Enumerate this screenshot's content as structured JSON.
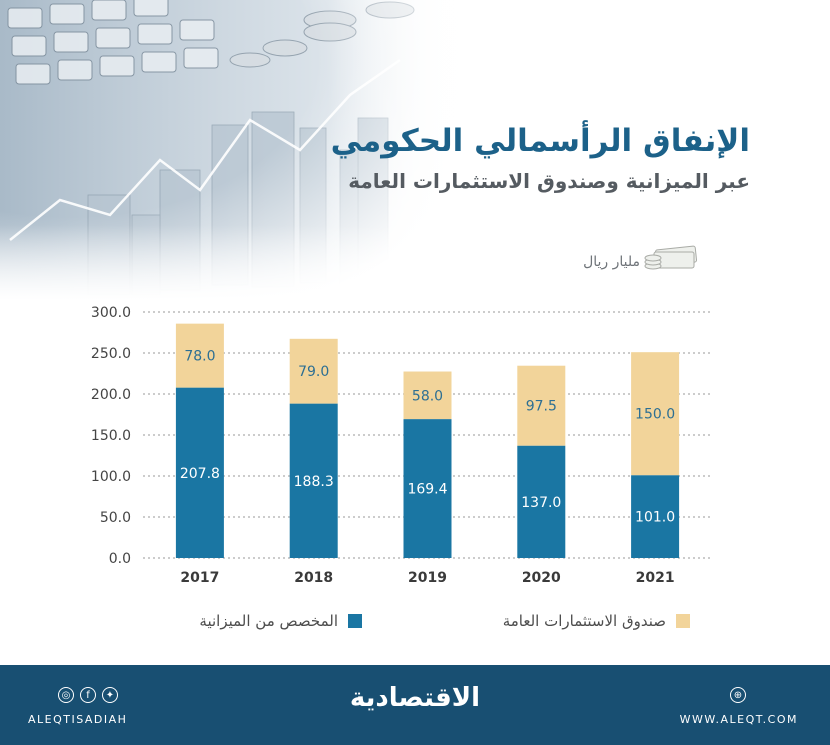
{
  "title": "الإنفاق الرأسمالي الحكومي",
  "subtitle": "عبر الميزانية وصندوق الاستثمارات العامة",
  "unit_label": "مليار ريال",
  "colors": {
    "budget": "#1a76a3",
    "fund": "#f2d49a",
    "title": "#1c6189",
    "footer": "#184f72"
  },
  "chart_data": {
    "type": "bar",
    "stacked": true,
    "categories": [
      "2017",
      "2018",
      "2019",
      "2020",
      "2021"
    ],
    "series": [
      {
        "name": "المخصص من الميزانية",
        "values": [
          207.8,
          188.3,
          169.4,
          137.0,
          101.0
        ]
      },
      {
        "name": "صندوق الاستثمارات العامة",
        "values": [
          78.0,
          79.0,
          58.0,
          97.5,
          150.0
        ]
      }
    ],
    "yticks": [
      "0.0",
      "50.0",
      "100.0",
      "150.0",
      "200.0",
      "250.0",
      "300.0"
    ],
    "ylim": [
      0,
      300
    ],
    "grid": true,
    "legend_position": "bottom"
  },
  "footer": {
    "brand": "الاقتصادية",
    "handle": "ALEQTISADIAH",
    "url": "WWW.ALEQT.COM",
    "social_icons": [
      "instagram-icon",
      "facebook-icon",
      "twitter-icon"
    ],
    "web_icon": "globe-icon"
  }
}
